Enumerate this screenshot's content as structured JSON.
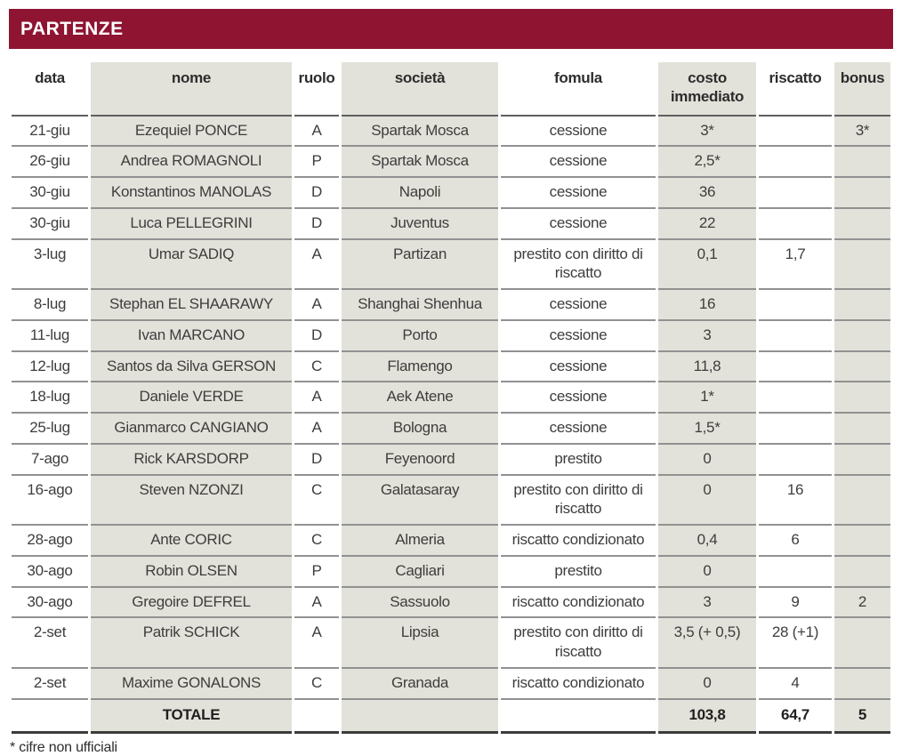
{
  "title": "PARTENZE",
  "colors": {
    "accent": "#8e1432",
    "column_band": "#e3e2da",
    "rule_gray": "#919191",
    "rule_dark": "#3c3c3c"
  },
  "table": {
    "columns": [
      {
        "key": "data",
        "label": "data",
        "shaded": false
      },
      {
        "key": "nome",
        "label": "nome",
        "shaded": true
      },
      {
        "key": "ruolo",
        "label": "ruolo",
        "shaded": false
      },
      {
        "key": "societa",
        "label": "società",
        "shaded": true
      },
      {
        "key": "fomula",
        "label": "fomula",
        "shaded": false
      },
      {
        "key": "costo",
        "label": "costo immediato",
        "shaded": true
      },
      {
        "key": "riscatto",
        "label": "riscatto",
        "shaded": false
      },
      {
        "key": "bonus",
        "label": "bonus",
        "shaded": true
      }
    ],
    "rows": [
      [
        "21-giu",
        "Ezequiel PONCE",
        "A",
        "Spartak Mosca",
        "cessione",
        "3*",
        "",
        "3*"
      ],
      [
        "26-giu",
        "Andrea ROMAGNOLI",
        "P",
        "Spartak Mosca",
        "cessione",
        "2,5*",
        "",
        ""
      ],
      [
        "30-giu",
        "Konstantinos MANOLAS",
        "D",
        "Napoli",
        "cessione",
        "36",
        "",
        ""
      ],
      [
        "30-giu",
        "Luca PELLEGRINI",
        "D",
        "Juventus",
        "cessione",
        "22",
        "",
        ""
      ],
      [
        "3-lug",
        "Umar SADIQ",
        "A",
        "Partizan",
        "prestito con diritto di riscatto",
        "0,1",
        "1,7",
        ""
      ],
      [
        "8-lug",
        "Stephan EL SHAARAWY",
        "A",
        "Shanghai Shenhua",
        "cessione",
        "16",
        "",
        ""
      ],
      [
        "11-lug",
        "Ivan MARCANO",
        "D",
        "Porto",
        "cessione",
        "3",
        "",
        ""
      ],
      [
        "12-lug",
        "Santos da Silva GERSON",
        "C",
        "Flamengo",
        "cessione",
        "11,8",
        "",
        ""
      ],
      [
        "18-lug",
        "Daniele VERDE",
        "A",
        "Aek Atene",
        "cessione",
        "1*",
        "",
        ""
      ],
      [
        "25-lug",
        "Gianmarco CANGIANO",
        "A",
        "Bologna",
        "cessione",
        "1,5*",
        "",
        ""
      ],
      [
        "7-ago",
        "Rick KARSDORP",
        "D",
        "Feyenoord",
        "prestito",
        "0",
        "",
        ""
      ],
      [
        "16-ago",
        "Steven NZONZI",
        "C",
        "Galatasaray",
        "prestito con diritto di riscatto",
        "0",
        "16",
        ""
      ],
      [
        "28-ago",
        "Ante CORIC",
        "C",
        "Almeria",
        "riscatto condizionato",
        "0,4",
        "6",
        ""
      ],
      [
        "30-ago",
        "Robin OLSEN",
        "P",
        "Cagliari",
        "prestito",
        "0",
        "",
        ""
      ],
      [
        "30-ago",
        "Gregoire DEFREL",
        "A",
        "Sassuolo",
        "riscatto condizionato",
        "3",
        "9",
        "2"
      ],
      [
        "2-set",
        "Patrik SCHICK",
        "A",
        "Lipsia",
        "prestito con diritto di riscatto",
        "3,5 (+ 0,5)",
        "28 (+1)",
        ""
      ],
      [
        "2-set",
        "Maxime GONALONS",
        "C",
        "Granada",
        "riscatto condizionato",
        "0",
        "4",
        ""
      ]
    ],
    "total_row": [
      "",
      "TOTALE",
      "",
      "",
      "",
      "103,8",
      "64,7",
      "5"
    ]
  },
  "footnote": "* cifre non ufficiali"
}
